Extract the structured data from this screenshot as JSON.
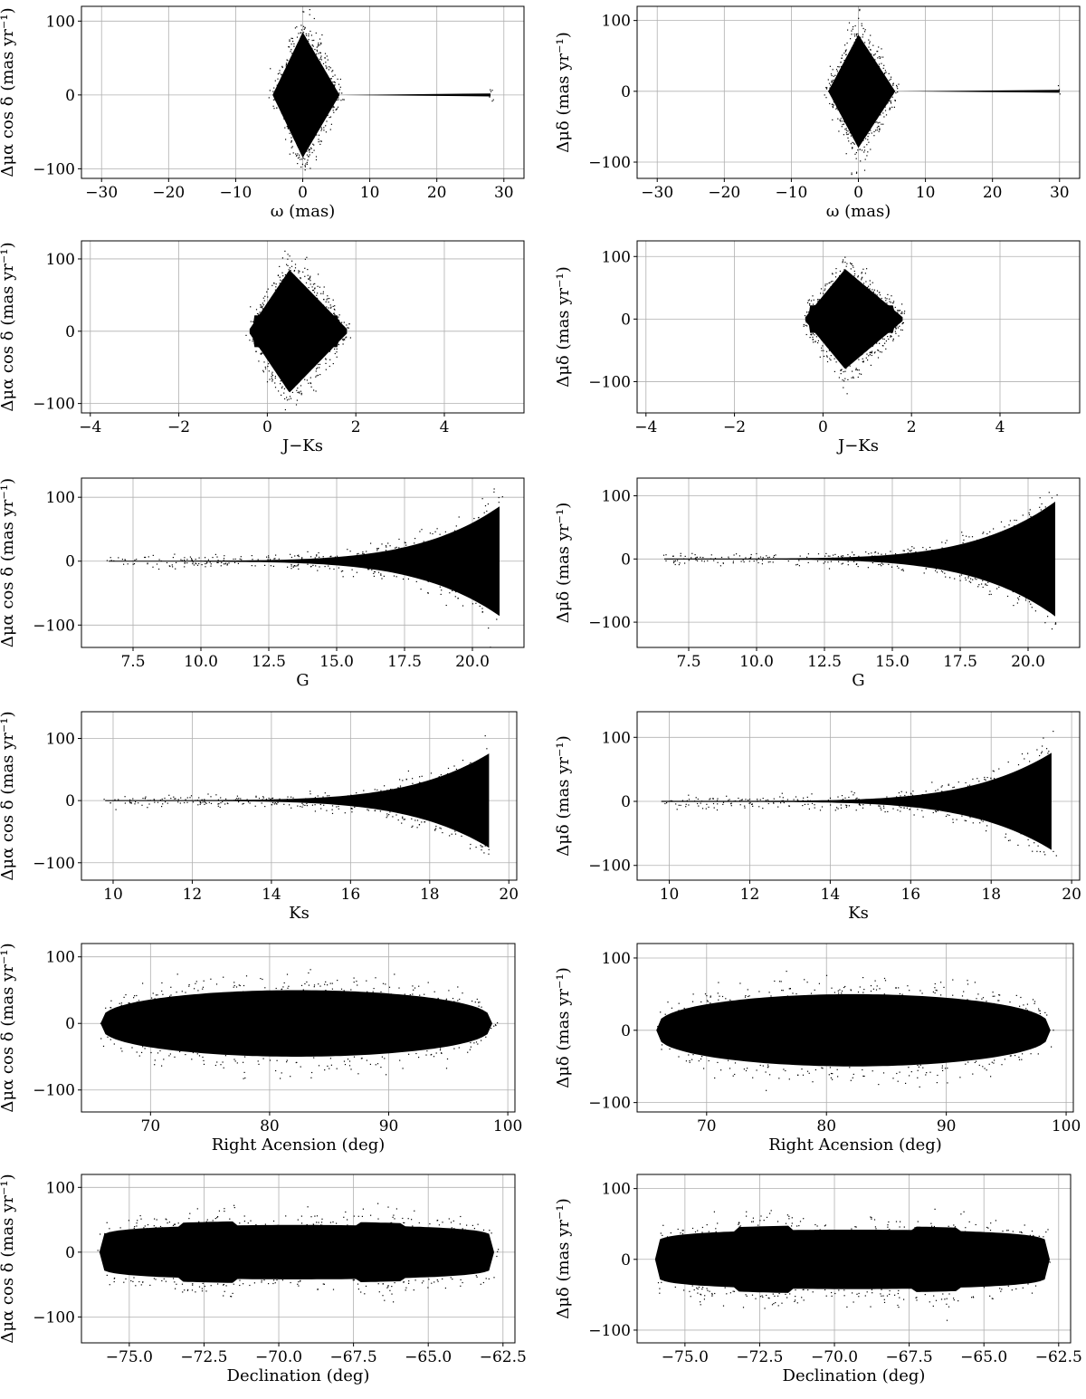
{
  "chart_data": [
    {
      "type": "scatter",
      "xlabel": "ω (mas)",
      "ylabel": "Δμα cos δ (mas yr⁻¹)",
      "xlim": [
        -33,
        33
      ],
      "ylim": [
        -113,
        120
      ],
      "xticks": [
        "−30",
        "−20",
        "−10",
        "0",
        "10",
        "20",
        "30"
      ],
      "xtick_values": [
        -30,
        -20,
        -10,
        0,
        10,
        20,
        30
      ],
      "yticks": [
        "−100",
        "0",
        "100"
      ],
      "ytick_values": [
        -100,
        0,
        100
      ],
      "grid": true,
      "point_color": "#000000",
      "shape": {
        "form": "diamond",
        "x": [
          -4.5,
          0,
          5.5
        ],
        "y_half": [
          0,
          85,
          0
        ],
        "tail_end": 28,
        "tail_height": 2
      }
    },
    {
      "type": "scatter",
      "xlabel": "ω (mas)",
      "ylabel": "Δμδ (mas yr⁻¹)",
      "xlim": [
        -33,
        33
      ],
      "ylim": [
        -123,
        120
      ],
      "xticks": [
        "−30",
        "−20",
        "−10",
        "0",
        "10",
        "20",
        "30"
      ],
      "xtick_values": [
        -30,
        -20,
        -10,
        0,
        10,
        20,
        30
      ],
      "yticks": [
        "−100",
        "0",
        "100"
      ],
      "ytick_values": [
        -100,
        0,
        100
      ],
      "grid": true,
      "point_color": "#000000",
      "shape": {
        "form": "diamond",
        "x": [
          -4.5,
          0,
          5.5
        ],
        "y_half": [
          0,
          80,
          0
        ],
        "tail_end": 30,
        "tail_height": 2
      }
    },
    {
      "type": "scatter",
      "xlabel": "J−Ks",
      "ylabel": "Δμα cos δ (mas yr⁻¹)",
      "xlim": [
        -4.2,
        5.8
      ],
      "ylim": [
        -113,
        125
      ],
      "xticks": [
        "−4",
        "−2",
        "0",
        "2",
        "4"
      ],
      "xtick_values": [
        -4,
        -2,
        0,
        2,
        4
      ],
      "yticks": [
        "−100",
        "0",
        "100"
      ],
      "ytick_values": [
        -100,
        0,
        100
      ],
      "grid": true,
      "point_color": "#000000",
      "shape": {
        "form": "color",
        "x": [
          -0.4,
          0.5,
          1.8
        ],
        "y_half": [
          3,
          85,
          3
        ]
      }
    },
    {
      "type": "scatter",
      "xlabel": "J−Ks",
      "ylabel": "Δμδ (mas yr⁻¹)",
      "xlim": [
        -4.2,
        5.8
      ],
      "ylim": [
        -150,
        125
      ],
      "xticks": [
        "−4",
        "−2",
        "0",
        "2",
        "4"
      ],
      "xtick_values": [
        -4,
        -2,
        0,
        2,
        4
      ],
      "yticks": [
        "−100",
        "0",
        "100"
      ],
      "ytick_values": [
        -100,
        0,
        100
      ],
      "grid": true,
      "point_color": "#000000",
      "shape": {
        "form": "color",
        "x": [
          -0.4,
          0.5,
          1.8
        ],
        "y_half": [
          3,
          80,
          3
        ]
      }
    },
    {
      "type": "scatter",
      "xlabel": "G",
      "ylabel": "Δμα cos δ (mas yr⁻¹)",
      "xlim": [
        5.6,
        21.9
      ],
      "ylim": [
        -135,
        130
      ],
      "xticks": [
        "7.5",
        "10.0",
        "12.5",
        "15.0",
        "17.5",
        "20.0"
      ],
      "xtick_values": [
        7.5,
        10,
        12.5,
        15,
        17.5,
        20
      ],
      "yticks": [
        "−100",
        "0",
        "100"
      ],
      "ytick_values": [
        -100,
        0,
        100
      ],
      "grid": true,
      "point_color": "#000000",
      "shape": {
        "form": "flare",
        "x_start": 6.6,
        "x_end": 21.0,
        "y_max": 85
      }
    },
    {
      "type": "scatter",
      "xlabel": "G",
      "ylabel": "Δμδ (mas yr⁻¹)",
      "xlim": [
        5.6,
        21.9
      ],
      "ylim": [
        -140,
        128
      ],
      "xticks": [
        "7.5",
        "10.0",
        "12.5",
        "15.0",
        "17.5",
        "20.0"
      ],
      "xtick_values": [
        7.5,
        10,
        12.5,
        15,
        17.5,
        20
      ],
      "yticks": [
        "−100",
        "0",
        "100"
      ],
      "ytick_values": [
        -100,
        0,
        100
      ],
      "grid": true,
      "point_color": "#000000",
      "shape": {
        "form": "flare",
        "x_start": 6.6,
        "x_end": 21.0,
        "y_max": 90
      }
    },
    {
      "type": "scatter",
      "xlabel": "Ks",
      "ylabel": "Δμα cos δ (mas yr⁻¹)",
      "xlim": [
        9.2,
        20.2
      ],
      "ylim": [
        -128,
        143
      ],
      "xticks": [
        "10",
        "12",
        "14",
        "16",
        "18",
        "20"
      ],
      "xtick_values": [
        10,
        12,
        14,
        16,
        18,
        20
      ],
      "yticks": [
        "−100",
        "0",
        "100"
      ],
      "ytick_values": [
        -100,
        0,
        100
      ],
      "grid": true,
      "point_color": "#000000",
      "shape": {
        "form": "flare",
        "x_start": 9.8,
        "x_end": 19.5,
        "y_max": 75
      }
    },
    {
      "type": "scatter",
      "xlabel": "Ks",
      "ylabel": "Δμδ (mas yr⁻¹)",
      "xlim": [
        9.2,
        20.2
      ],
      "ylim": [
        -123,
        140
      ],
      "xticks": [
        "10",
        "12",
        "14",
        "16",
        "18",
        "20"
      ],
      "xtick_values": [
        10,
        12,
        14,
        16,
        18,
        20
      ],
      "yticks": [
        "−100",
        "0",
        "100"
      ],
      "ytick_values": [
        -100,
        0,
        100
      ],
      "grid": true,
      "point_color": "#000000",
      "shape": {
        "form": "flare",
        "x_start": 9.8,
        "x_end": 19.5,
        "y_max": 75
      }
    },
    {
      "type": "scatter",
      "xlabel": "Right Acension (deg)",
      "ylabel": "Δμα cos δ (mas yr⁻¹)",
      "xlim": [
        64.2,
        100.6
      ],
      "ylim": [
        -133,
        120
      ],
      "xticks": [
        "70",
        "80",
        "90",
        "100"
      ],
      "xtick_values": [
        70,
        80,
        90,
        100
      ],
      "yticks": [
        "−100",
        "0",
        "100"
      ],
      "ytick_values": [
        -100,
        0,
        100
      ],
      "grid": true,
      "point_color": "#000000",
      "shape": {
        "form": "ellipse",
        "x_start": 65.8,
        "x_end": 98.7,
        "y_half": 50
      }
    },
    {
      "type": "scatter",
      "xlabel": "Right Acension (deg)",
      "ylabel": "Δμδ (mas yr⁻¹)",
      "xlim": [
        64.2,
        100.6
      ],
      "ylim": [
        -113,
        120
      ],
      "xticks": [
        "70",
        "80",
        "90",
        "100"
      ],
      "xtick_values": [
        70,
        80,
        90,
        100
      ],
      "yticks": [
        "−100",
        "0",
        "100"
      ],
      "ytick_values": [
        -100,
        0,
        100
      ],
      "grid": true,
      "point_color": "#000000",
      "shape": {
        "form": "ellipse",
        "x_start": 65.8,
        "x_end": 98.7,
        "y_half": 50
      }
    },
    {
      "type": "scatter",
      "xlabel": "Declination (deg)",
      "ylabel": "Δμα cos δ (mas yr⁻¹)",
      "xlim": [
        -76.6,
        -62.1
      ],
      "ylim": [
        -140,
        120
      ],
      "xticks": [
        "−75.0",
        "−72.5",
        "−70.0",
        "−67.5",
        "−65.0",
        "−62.5"
      ],
      "xtick_values": [
        -75,
        -72.5,
        -70,
        -67.5,
        -65,
        -62.5
      ],
      "yticks": [
        "−100",
        "0",
        "100"
      ],
      "ytick_values": [
        -100,
        0,
        100
      ],
      "grid": true,
      "point_color": "#000000",
      "shape": {
        "form": "band",
        "x_start": -76.0,
        "x_end": -62.8,
        "y_half": 42
      }
    },
    {
      "type": "scatter",
      "xlabel": "Declination (deg)",
      "ylabel": "Δμδ (mas yr⁻¹)",
      "xlim": [
        -76.6,
        -62.1
      ],
      "ylim": [
        -118,
        120
      ],
      "xticks": [
        "−75.0",
        "−72.5",
        "−70.0",
        "−67.5",
        "−65.0",
        "−62.5"
      ],
      "xtick_values": [
        -75,
        -72.5,
        -70,
        -67.5,
        -65,
        -62.5
      ],
      "yticks": [
        "−100",
        "0",
        "100"
      ],
      "ytick_values": [
        -100,
        0,
        100
      ],
      "grid": true,
      "point_color": "#000000",
      "shape": {
        "form": "band",
        "x_start": -76.0,
        "x_end": -62.8,
        "y_half": 42
      }
    }
  ]
}
